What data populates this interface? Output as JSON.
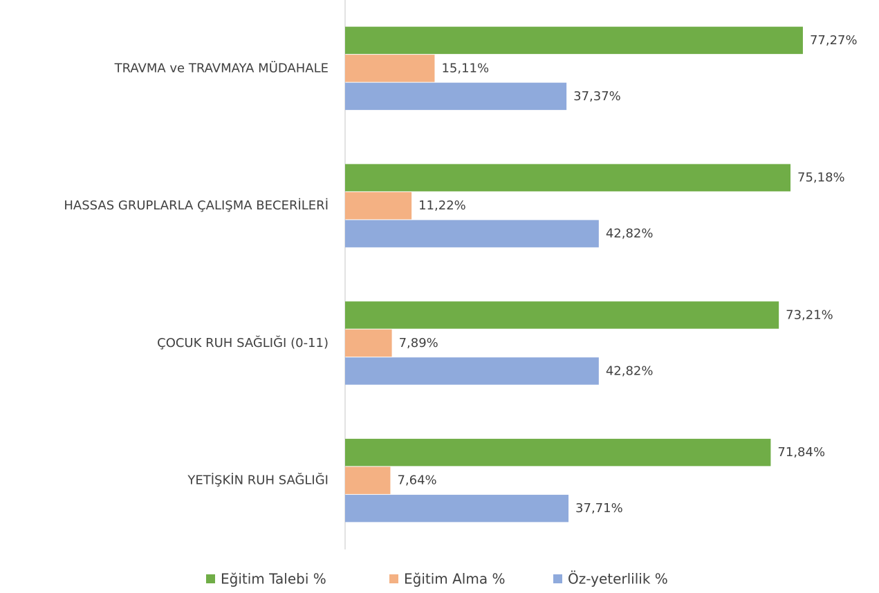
{
  "chart_data": {
    "type": "bar",
    "orientation": "horizontal",
    "categories": [
      "TRAVMA ve TRAVMAYA MÜDAHALE",
      "HASSAS GRUPLARLA ÇALIŞMA BECERİLERİ",
      "ÇOCUK RUH SAĞLIĞI (0-11)",
      "YETİŞKİN RUH SAĞLIĞI"
    ],
    "series": [
      {
        "name": "Eğitim Talebi %",
        "color": "#70ad47",
        "values": [
          77.27,
          75.18,
          73.21,
          71.84
        ],
        "value_labels": [
          "77,27%",
          "75,18%",
          "73,21%",
          "71,84%"
        ]
      },
      {
        "name": "Eğitim Alma %",
        "color": "#f4b183",
        "values": [
          15.11,
          11.22,
          7.89,
          7.64
        ],
        "value_labels": [
          "15,11%",
          "11,22%",
          "7,89%",
          "7,64%"
        ]
      },
      {
        "name": "Öz-yeterlilik %",
        "color": "#8faadc",
        "values": [
          37.37,
          42.82,
          42.82,
          37.71
        ],
        "value_labels": [
          "37,37%",
          "42,82%",
          "42,82%",
          "37,71%"
        ]
      }
    ],
    "xlim": [
      0,
      90
    ],
    "legend": "bottom"
  }
}
